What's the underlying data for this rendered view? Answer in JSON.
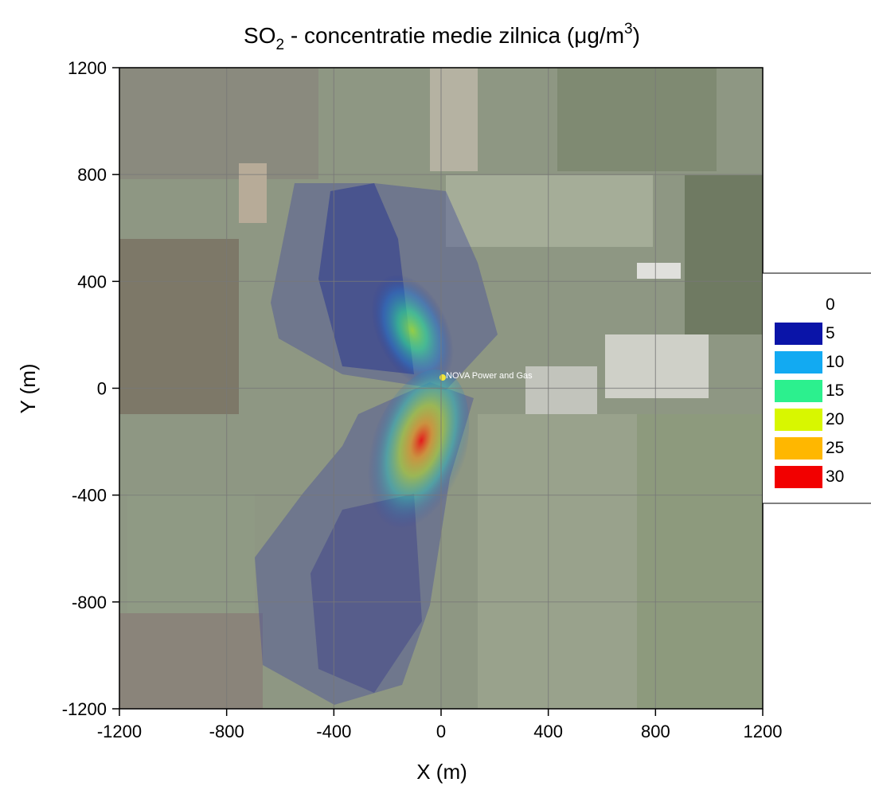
{
  "chart_data": {
    "type": "contour",
    "title": [
      "SO",
      "2",
      " - concentratie medie zilnica (μg/m",
      "3",
      ")"
    ],
    "x_label": "X (m)",
    "y_label": "Y (m)",
    "xlim": [
      -1200,
      1200
    ],
    "xticks": [
      -1200,
      -800,
      -400,
      0,
      400,
      800,
      1200
    ],
    "ylim": [
      -1200,
      1200
    ],
    "yticks": [
      -1200,
      -800,
      -400,
      0,
      400,
      800,
      1200
    ],
    "grid": true,
    "levels": [
      0,
      5,
      10,
      15,
      20,
      25,
      30
    ],
    "colors": [
      "#0a14a8",
      "#12aaf2",
      "#2cf08e",
      "#d8f700",
      "#ffb700",
      "#f20000"
    ],
    "legend": "right",
    "annotations": [
      "NOVA Power and Gas"
    ]
  }
}
